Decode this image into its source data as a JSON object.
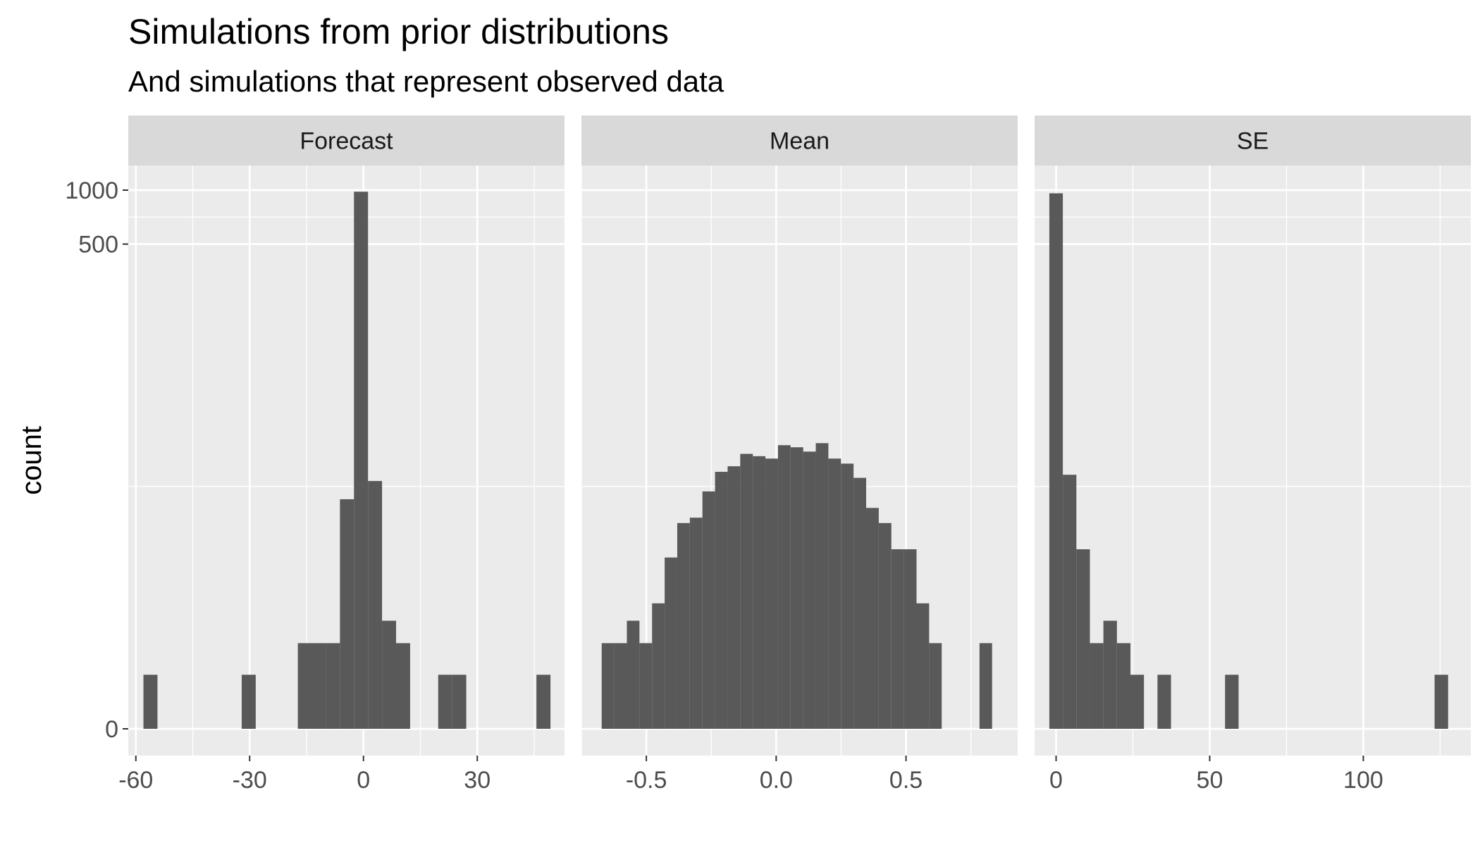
{
  "title": "Simulations from prior distributions",
  "subtitle": "And simulations that represent observed data",
  "ylabel": "count",
  "chart_data": {
    "type": "bar",
    "title": "Simulations from prior distributions",
    "subtitle": "And simulations that represent observed data",
    "ylabel": "count",
    "xlabel": "",
    "y_scale": "pseudo-log",
    "y_ticks": [
      0,
      500,
      1000
    ],
    "y_tick_labels": [
      "0",
      "500",
      "1000"
    ],
    "ylim": [
      0,
      1000
    ],
    "grid": true,
    "bar_color": "#595959",
    "panel_color": "#EBEBEB",
    "strip_color": "#D9D9D9",
    "panels": [
      {
        "name": "Forecast",
        "xlim": [
          -62,
          53
        ],
        "x_ticks": [
          -60,
          -30,
          0,
          30
        ],
        "x_tick_labels": [
          "-60",
          "-30",
          "0",
          "30"
        ],
        "bins": [
          {
            "x0": -58,
            "x1": -54.3,
            "count": 1
          },
          {
            "x0": -54.3,
            "x1": -50.6,
            "count": 0
          },
          {
            "x0": -50.6,
            "x1": -46.9,
            "count": 0
          },
          {
            "x0": -46.9,
            "x1": -43.2,
            "count": 0
          },
          {
            "x0": -43.2,
            "x1": -39.5,
            "count": 0
          },
          {
            "x0": -39.5,
            "x1": -35.8,
            "count": 0
          },
          {
            "x0": -35.8,
            "x1": -32.1,
            "count": 0
          },
          {
            "x0": -32.1,
            "x1": -28.4,
            "count": 1
          },
          {
            "x0": -28.4,
            "x1": -24.7,
            "count": 0
          },
          {
            "x0": -24.7,
            "x1": -21.0,
            "count": 0
          },
          {
            "x0": -21.0,
            "x1": -17.3,
            "count": 0
          },
          {
            "x0": -17.3,
            "x1": -13.6,
            "count": 2
          },
          {
            "x0": -13.6,
            "x1": -9.9,
            "count": 2
          },
          {
            "x0": -9.9,
            "x1": -6.2,
            "count": 2
          },
          {
            "x0": -6.2,
            "x1": -2.5,
            "count": 18
          },
          {
            "x0": -2.5,
            "x1": 1.2,
            "count": 980
          },
          {
            "x0": 1.2,
            "x1": 4.9,
            "count": 23
          },
          {
            "x0": 4.9,
            "x1": 8.6,
            "count": 3
          },
          {
            "x0": 8.6,
            "x1": 12.3,
            "count": 2
          },
          {
            "x0": 12.3,
            "x1": 16.0,
            "count": 0
          },
          {
            "x0": 16.0,
            "x1": 19.7,
            "count": 0
          },
          {
            "x0": 19.7,
            "x1": 23.4,
            "count": 1
          },
          {
            "x0": 23.4,
            "x1": 27.1,
            "count": 1
          },
          {
            "x0": 27.1,
            "x1": 30.8,
            "count": 0
          },
          {
            "x0": 30.8,
            "x1": 34.5,
            "count": 0
          },
          {
            "x0": 34.5,
            "x1": 38.2,
            "count": 0
          },
          {
            "x0": 38.2,
            "x1": 41.9,
            "count": 0
          },
          {
            "x0": 41.9,
            "x1": 45.6,
            "count": 0
          },
          {
            "x0": 45.6,
            "x1": 49.3,
            "count": 1
          }
        ]
      },
      {
        "name": "Mean",
        "xlim": [
          -0.75,
          0.93
        ],
        "x_ticks": [
          -0.5,
          0.0,
          0.5
        ],
        "x_tick_labels": [
          "-0.5",
          "0.0",
          "0.5"
        ],
        "bins": [
          {
            "x0": -0.672,
            "x1": -0.6235,
            "count": 2
          },
          {
            "x0": -0.6235,
            "x1": -0.575,
            "count": 2
          },
          {
            "x0": -0.575,
            "x1": -0.5265,
            "count": 3
          },
          {
            "x0": -0.5265,
            "x1": -0.478,
            "count": 2
          },
          {
            "x0": -0.478,
            "x1": -0.4295,
            "count": 4
          },
          {
            "x0": -0.4295,
            "x1": -0.381,
            "count": 8
          },
          {
            "x0": -0.381,
            "x1": -0.3325,
            "count": 13
          },
          {
            "x0": -0.3325,
            "x1": -0.284,
            "count": 14
          },
          {
            "x0": -0.284,
            "x1": -0.2355,
            "count": 20
          },
          {
            "x0": -0.2355,
            "x1": -0.187,
            "count": 26
          },
          {
            "x0": -0.187,
            "x1": -0.1385,
            "count": 28
          },
          {
            "x0": -0.1385,
            "x1": -0.09,
            "count": 33
          },
          {
            "x0": -0.09,
            "x1": -0.0415,
            "count": 32
          },
          {
            "x0": -0.0415,
            "x1": 0.007,
            "count": 31
          },
          {
            "x0": 0.007,
            "x1": 0.0555,
            "count": 37
          },
          {
            "x0": 0.0555,
            "x1": 0.104,
            "count": 36
          },
          {
            "x0": 0.104,
            "x1": 0.1525,
            "count": 34
          },
          {
            "x0": 0.1525,
            "x1": 0.201,
            "count": 38
          },
          {
            "x0": 0.201,
            "x1": 0.2495,
            "count": 31
          },
          {
            "x0": 0.2495,
            "x1": 0.298,
            "count": 29
          },
          {
            "x0": 0.298,
            "x1": 0.3465,
            "count": 24
          },
          {
            "x0": 0.3465,
            "x1": 0.395,
            "count": 16
          },
          {
            "x0": 0.395,
            "x1": 0.4435,
            "count": 13
          },
          {
            "x0": 0.4435,
            "x1": 0.492,
            "count": 9
          },
          {
            "x0": 0.492,
            "x1": 0.5405,
            "count": 9
          },
          {
            "x0": 0.5405,
            "x1": 0.589,
            "count": 4
          },
          {
            "x0": 0.589,
            "x1": 0.6375,
            "count": 2
          },
          {
            "x0": 0.6375,
            "x1": 0.686,
            "count": 0
          },
          {
            "x0": 0.686,
            "x1": 0.7345,
            "count": 0
          },
          {
            "x0": 0.7345,
            "x1": 0.783,
            "count": 0
          },
          {
            "x0": 0.783,
            "x1": 0.8315,
            "count": 2
          }
        ]
      },
      {
        "name": "SE",
        "xlim": [
          -7,
          135
        ],
        "x_ticks": [
          0,
          50,
          100
        ],
        "x_tick_labels": [
          "0",
          "50",
          "100"
        ],
        "bins": [
          {
            "x0": -2.2,
            "x1": 2.2,
            "count": 960
          },
          {
            "x0": 2.2,
            "x1": 6.6,
            "count": 25
          },
          {
            "x0": 6.6,
            "x1": 11.0,
            "count": 9
          },
          {
            "x0": 11.0,
            "x1": 15.4,
            "count": 2
          },
          {
            "x0": 15.4,
            "x1": 19.8,
            "count": 3
          },
          {
            "x0": 19.8,
            "x1": 24.2,
            "count": 2
          },
          {
            "x0": 24.2,
            "x1": 28.6,
            "count": 1
          },
          {
            "x0": 28.6,
            "x1": 33.0,
            "count": 0
          },
          {
            "x0": 33.0,
            "x1": 37.4,
            "count": 1
          },
          {
            "x0": 37.4,
            "x1": 41.8,
            "count": 0
          },
          {
            "x0": 41.8,
            "x1": 46.2,
            "count": 0
          },
          {
            "x0": 46.2,
            "x1": 50.6,
            "count": 0
          },
          {
            "x0": 50.6,
            "x1": 55.0,
            "count": 0
          },
          {
            "x0": 55.0,
            "x1": 59.4,
            "count": 1
          },
          {
            "x0": 123.2,
            "x1": 127.6,
            "count": 1
          }
        ]
      }
    ]
  }
}
